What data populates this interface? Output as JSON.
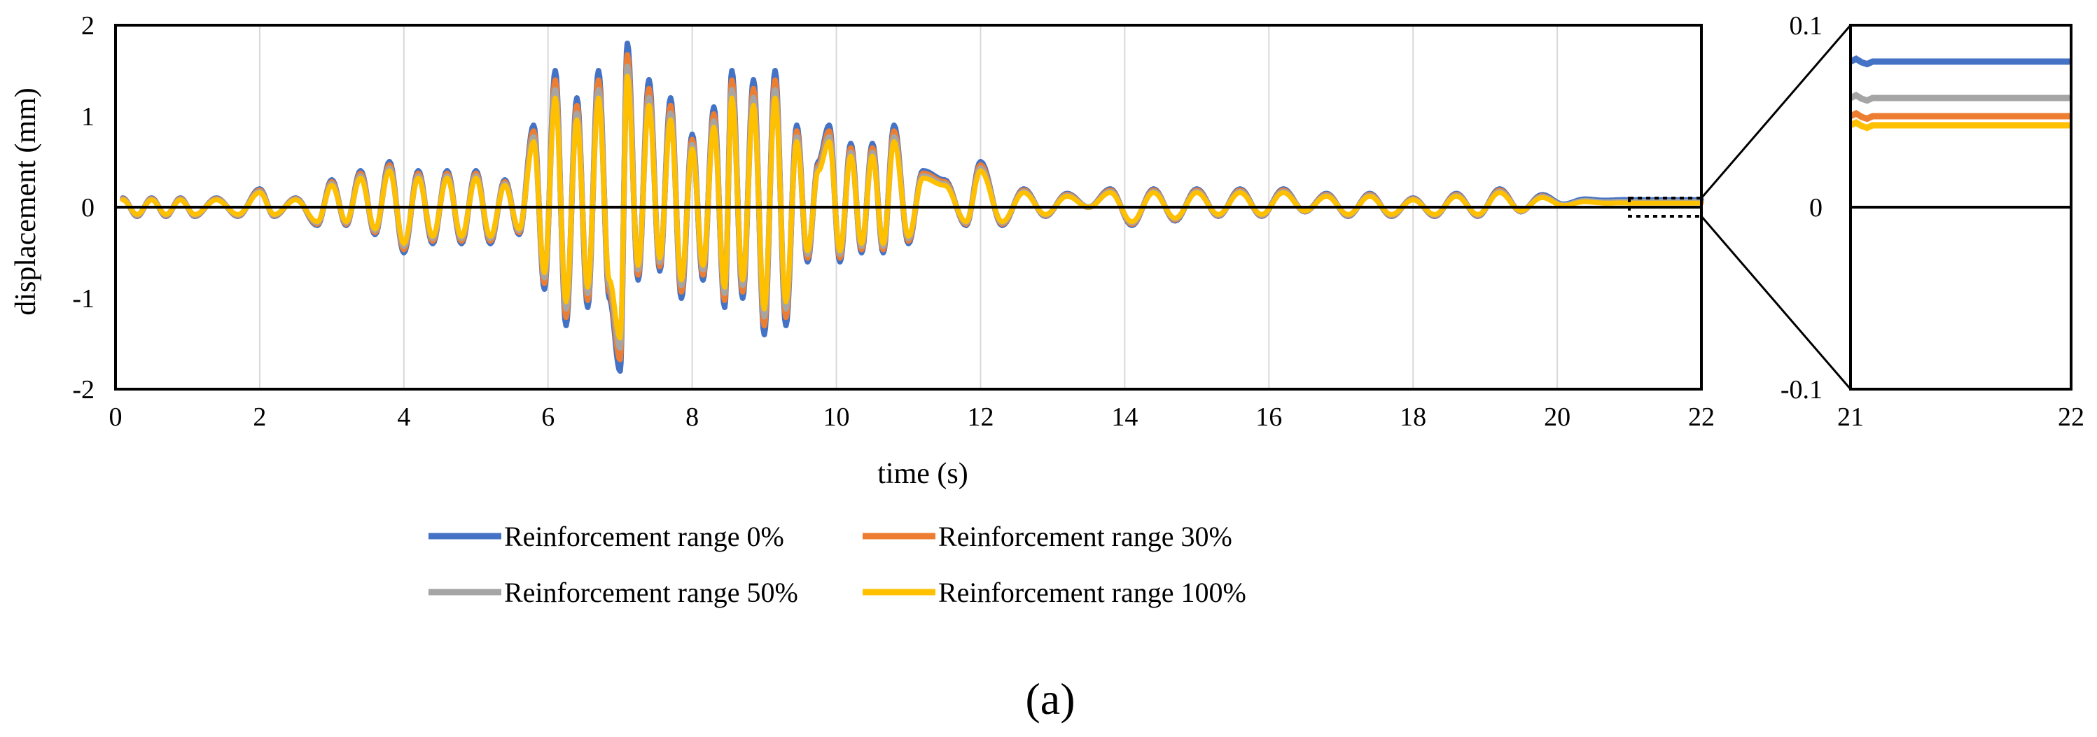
{
  "figure": {
    "panel_label": "(a)"
  },
  "colors": {
    "r0": "#4472C4",
    "r30": "#ED7D31",
    "r50": "#A5A5A5",
    "r100": "#FFC000",
    "grid": "#D9D9D9",
    "axis": "#000000"
  },
  "legend": {
    "items": [
      {
        "label": "Reinforcement range 0%",
        "color": "#4472C4"
      },
      {
        "label": "Reinforcement range 30%",
        "color": "#ED7D31"
      },
      {
        "label": "Reinforcement range 50%",
        "color": "#A5A5A5"
      },
      {
        "label": "Reinforcement range 100%",
        "color": "#FFC000"
      }
    ]
  },
  "chart_data": [
    {
      "type": "line",
      "title": "",
      "xlabel": "time (s)",
      "ylabel": "displacement (mm)",
      "xlim": [
        0,
        22
      ],
      "ylim": [
        -2,
        2
      ],
      "xticks": [
        "0",
        "2",
        "4",
        "6",
        "8",
        "10",
        "12",
        "14",
        "16",
        "18",
        "20",
        "22"
      ],
      "yticks": [
        "-2",
        "-1",
        "0",
        "1",
        "2"
      ],
      "grid": "vertical",
      "legend_position": "bottom",
      "series_amplitude_scale": {
        "Reinforcement range 0%": 1.0,
        "Reinforcement range 30%": 0.93,
        "Reinforcement range 50%": 0.86,
        "Reinforcement range 100%": 0.8
      },
      "series_offset": {
        "Reinforcement range 0%": 0.08,
        "Reinforcement range 30%": 0.05,
        "Reinforcement range 50%": 0.06,
        "Reinforcement range 100%": 0.045
      },
      "peaks": {
        "x": [
          0.1,
          0.3,
          0.5,
          0.7,
          0.9,
          1.1,
          1.4,
          1.7,
          2.0,
          2.2,
          2.5,
          2.8,
          3.0,
          3.2,
          3.4,
          3.6,
          3.8,
          4.0,
          4.2,
          4.4,
          4.6,
          4.8,
          5.0,
          5.2,
          5.4,
          5.6,
          5.8,
          5.95,
          6.1,
          6.25,
          6.4,
          6.55,
          6.7,
          6.85,
          7.0,
          7.1,
          7.25,
          7.4,
          7.55,
          7.7,
          7.85,
          8.0,
          8.15,
          8.3,
          8.45,
          8.55,
          8.7,
          8.85,
          9.0,
          9.15,
          9.3,
          9.45,
          9.6,
          9.75,
          9.9,
          10.05,
          10.2,
          10.35,
          10.5,
          10.65,
          10.8,
          11.0,
          11.2,
          11.5,
          11.8,
          12.0,
          12.3,
          12.6,
          12.9,
          13.2,
          13.5,
          13.8,
          14.1,
          14.4,
          14.7,
          15.0,
          15.3,
          15.6,
          15.9,
          16.2,
          16.5,
          16.8,
          17.1,
          17.4,
          17.7,
          18.0,
          18.3,
          18.6,
          18.9,
          19.2,
          19.5,
          19.8,
          20.1,
          20.4,
          20.7,
          21.0,
          21.3,
          21.6,
          22.0
        ],
        "y": [
          0.1,
          -0.1,
          0.1,
          -0.1,
          0.1,
          -0.1,
          0.1,
          -0.1,
          0.2,
          -0.1,
          0.1,
          -0.2,
          0.3,
          -0.2,
          0.4,
          -0.3,
          0.5,
          -0.5,
          0.4,
          -0.4,
          0.4,
          -0.4,
          0.4,
          -0.4,
          0.3,
          -0.3,
          0.9,
          -0.9,
          1.5,
          -1.3,
          1.2,
          -1.1,
          1.5,
          -1.0,
          -1.8,
          1.8,
          -0.8,
          1.4,
          -0.7,
          1.2,
          -1.0,
          0.8,
          -0.8,
          1.1,
          -1.1,
          1.5,
          -1.0,
          1.4,
          -1.4,
          1.5,
          -1.3,
          0.9,
          -0.6,
          0.5,
          0.9,
          -0.6,
          0.7,
          -0.5,
          0.7,
          -0.5,
          0.9,
          -0.4,
          0.4,
          0.3,
          -0.2,
          0.5,
          -0.2,
          0.2,
          -0.1,
          0.15,
          0.0,
          0.2,
          -0.2,
          0.2,
          -0.15,
          0.2,
          -0.1,
          0.2,
          -0.1,
          0.2,
          -0.05,
          0.15,
          -0.1,
          0.15,
          -0.1,
          0.1,
          -0.1,
          0.15,
          -0.1,
          0.2,
          -0.05,
          0.15,
          0.0,
          0.1,
          0.05,
          0.1,
          0.08,
          0.08,
          0.08
        ]
      }
    },
    {
      "type": "line",
      "title": "",
      "xlim": [
        21,
        22
      ],
      "ylim": [
        -0.1,
        0.1
      ],
      "xticks": [
        "21",
        "22"
      ],
      "yticks": [
        "-0.1",
        "0",
        "0.1"
      ],
      "series": [
        {
          "name": "Reinforcement range 0%",
          "x": [
            21,
            22
          ],
          "values": [
            0.08,
            0.08
          ]
        },
        {
          "name": "Reinforcement range 30%",
          "x": [
            21,
            22
          ],
          "values": [
            0.05,
            0.05
          ]
        },
        {
          "name": "Reinforcement range 50%",
          "x": [
            21,
            22
          ],
          "values": [
            0.06,
            0.06
          ]
        },
        {
          "name": "Reinforcement range 100%",
          "x": [
            21,
            22
          ],
          "values": [
            0.045,
            0.045
          ]
        }
      ]
    }
  ]
}
